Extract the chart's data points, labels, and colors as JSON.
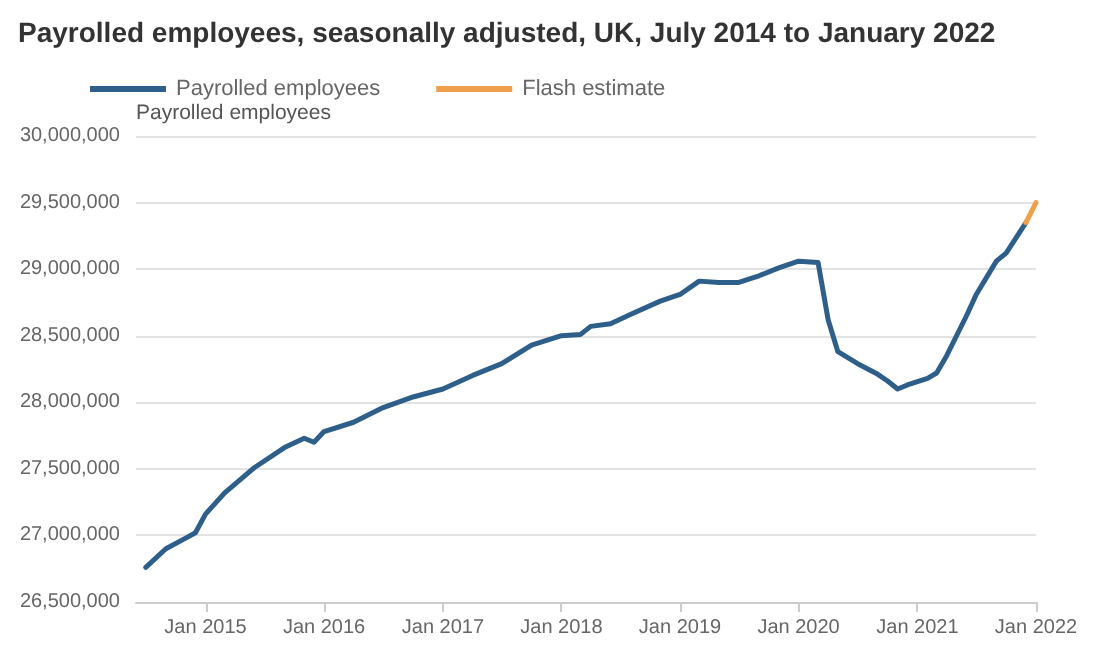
{
  "chart_data": {
    "type": "line",
    "title": "Payrolled employees, seasonally adjusted, UK, July 2014 to January 2022",
    "ylabel": "Payrolled employees",
    "xlim": [
      "2014-06",
      "2022-01"
    ],
    "xticks": [
      {
        "value": "2015-01",
        "label": "Jan 2015"
      },
      {
        "value": "2016-01",
        "label": "Jan 2016"
      },
      {
        "value": "2017-01",
        "label": "Jan 2017"
      },
      {
        "value": "2018-01",
        "label": "Jan 2018"
      },
      {
        "value": "2019-01",
        "label": "Jan 2019"
      },
      {
        "value": "2020-01",
        "label": "Jan 2020"
      },
      {
        "value": "2021-01",
        "label": "Jan 2021"
      },
      {
        "value": "2022-01",
        "label": "Jan 2022"
      }
    ],
    "ylim": [
      26500000,
      30000000
    ],
    "yticks": [
      {
        "value": 26500000,
        "label": "26,500,000"
      },
      {
        "value": 27000000,
        "label": "27,000,000"
      },
      {
        "value": 27500000,
        "label": "27,500,000"
      },
      {
        "value": 28000000,
        "label": "28,000,000"
      },
      {
        "value": 28500000,
        "label": "28,500,000"
      },
      {
        "value": 29000000,
        "label": "29,000,000"
      },
      {
        "value": 29500000,
        "label": "29,500,000"
      },
      {
        "value": 30000000,
        "label": "30,000,000"
      }
    ],
    "grid": "y",
    "legend": "top left",
    "marker": "none",
    "line_style": "solid",
    "series": [
      {
        "name": "Payrolled employees",
        "color": "#2e5f8a",
        "x": [
          "2014-07",
          "2014-09",
          "2014-11",
          "2014-12",
          "2015-01",
          "2015-03",
          "2015-06",
          "2015-09",
          "2015-11",
          "2015-12",
          "2016-01",
          "2016-04",
          "2016-07",
          "2016-10",
          "2017-01",
          "2017-04",
          "2017-07",
          "2017-10",
          "2018-01",
          "2018-03",
          "2018-04",
          "2018-06",
          "2018-08",
          "2018-11",
          "2019-01",
          "2019-03",
          "2019-05",
          "2019-07",
          "2019-09",
          "2019-11",
          "2020-01",
          "2020-03",
          "2020-04",
          "2020-05",
          "2020-07",
          "2020-09",
          "2020-10",
          "2020-11",
          "2020-12",
          "2021-02",
          "2021-03",
          "2021-04",
          "2021-06",
          "2021-07",
          "2021-09",
          "2021-10",
          "2021-12"
        ],
        "values": [
          26760000,
          26900000,
          26980000,
          27020000,
          27160000,
          27320000,
          27510000,
          27660000,
          27730000,
          27700000,
          27780000,
          27850000,
          27960000,
          28040000,
          28100000,
          28200000,
          28290000,
          28430000,
          28500000,
          28510000,
          28570000,
          28590000,
          28660000,
          28760000,
          28810000,
          28910000,
          28900000,
          28900000,
          28950000,
          29010000,
          29060000,
          29050000,
          28620000,
          28380000,
          28290000,
          28210000,
          28160000,
          28100000,
          28130000,
          28180000,
          28220000,
          28350000,
          28650000,
          28810000,
          29060000,
          29120000,
          29350000
        ]
      },
      {
        "name": "Flash estimate",
        "color": "#f0a04b",
        "x": [
          "2021-12",
          "2022-01"
        ],
        "values": [
          29350000,
          29500000
        ]
      }
    ]
  }
}
